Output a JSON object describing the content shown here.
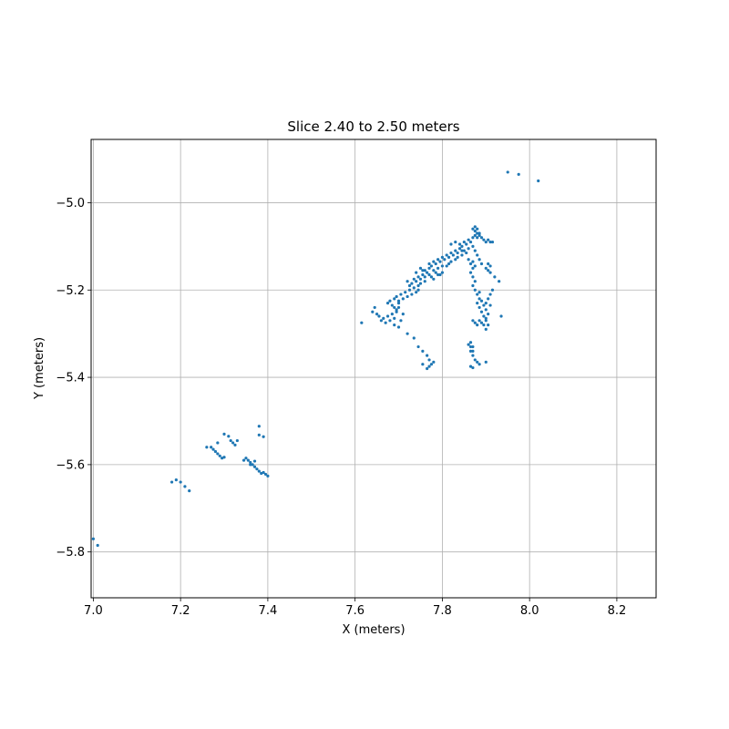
{
  "chart_data": {
    "type": "scatter",
    "title": "Slice 2.40 to 2.50 meters",
    "xlabel": "X (meters)",
    "ylabel": "Y (meters)",
    "xlim": [
      6.995,
      8.29
    ],
    "ylim": [
      -5.905,
      -4.855
    ],
    "grid": true,
    "xticks": [
      7.0,
      7.2,
      7.4,
      7.6,
      7.8,
      8.0,
      8.2
    ],
    "xtick_labels": [
      "7.0",
      "7.2",
      "7.4",
      "7.6",
      "7.8",
      "8.0",
      "8.2"
    ],
    "yticks": [
      -5.0,
      -5.2,
      -5.4,
      -5.6,
      -5.8
    ],
    "ytick_labels": [
      "−5.0",
      "−5.2",
      "−5.4",
      "−5.6",
      "−5.8"
    ],
    "series": [
      {
        "color": "#1f77b4",
        "marker_size": 1.6,
        "points": [
          [
            7.0,
            -5.77
          ],
          [
            7.01,
            -5.785
          ],
          [
            7.18,
            -5.64
          ],
          [
            7.19,
            -5.635
          ],
          [
            7.2,
            -5.64
          ],
          [
            7.21,
            -5.65
          ],
          [
            7.22,
            -5.66
          ],
          [
            7.26,
            -5.56
          ],
          [
            7.27,
            -5.56
          ],
          [
            7.275,
            -5.565
          ],
          [
            7.28,
            -5.57
          ],
          [
            7.285,
            -5.575
          ],
          [
            7.29,
            -5.58
          ],
          [
            7.295,
            -5.585
          ],
          [
            7.3,
            -5.583
          ],
          [
            7.285,
            -5.55
          ],
          [
            7.3,
            -5.53
          ],
          [
            7.31,
            -5.535
          ],
          [
            7.315,
            -5.545
          ],
          [
            7.32,
            -5.55
          ],
          [
            7.325,
            -5.555
          ],
          [
            7.33,
            -5.545
          ],
          [
            7.345,
            -5.59
          ],
          [
            7.35,
            -5.585
          ],
          [
            7.355,
            -5.59
          ],
          [
            7.36,
            -5.595
          ],
          [
            7.365,
            -5.6
          ],
          [
            7.37,
            -5.605
          ],
          [
            7.375,
            -5.61
          ],
          [
            7.38,
            -5.615
          ],
          [
            7.385,
            -5.62
          ],
          [
            7.39,
            -5.618
          ],
          [
            7.395,
            -5.622
          ],
          [
            7.4,
            -5.626
          ],
          [
            7.37,
            -5.592
          ],
          [
            7.36,
            -5.6
          ],
          [
            7.38,
            -5.512
          ],
          [
            7.38,
            -5.532
          ],
          [
            7.39,
            -5.536
          ],
          [
            7.615,
            -5.275
          ],
          [
            7.64,
            -5.25
          ],
          [
            7.645,
            -5.24
          ],
          [
            7.65,
            -5.255
          ],
          [
            7.655,
            -5.26
          ],
          [
            7.66,
            -5.27
          ],
          [
            7.665,
            -5.265
          ],
          [
            7.67,
            -5.275
          ],
          [
            7.675,
            -5.26
          ],
          [
            7.68,
            -5.27
          ],
          [
            7.685,
            -5.255
          ],
          [
            7.69,
            -5.265
          ],
          [
            7.695,
            -5.25
          ],
          [
            7.7,
            -5.24
          ],
          [
            7.69,
            -5.28
          ],
          [
            7.7,
            -5.285
          ],
          [
            7.705,
            -5.27
          ],
          [
            7.71,
            -5.255
          ],
          [
            7.675,
            -5.23
          ],
          [
            7.68,
            -5.225
          ],
          [
            7.685,
            -5.235
          ],
          [
            7.69,
            -5.22
          ],
          [
            7.695,
            -5.215
          ],
          [
            7.7,
            -5.225
          ],
          [
            7.705,
            -5.21
          ],
          [
            7.71,
            -5.22
          ],
          [
            7.715,
            -5.205
          ],
          [
            7.72,
            -5.215
          ],
          [
            7.725,
            -5.2
          ],
          [
            7.73,
            -5.21
          ],
          [
            7.735,
            -5.195
          ],
          [
            7.74,
            -5.205
          ],
          [
            7.745,
            -5.19
          ],
          [
            7.69,
            -5.24
          ],
          [
            7.695,
            -5.245
          ],
          [
            7.7,
            -5.23
          ],
          [
            7.72,
            -5.18
          ],
          [
            7.725,
            -5.19
          ],
          [
            7.73,
            -5.185
          ],
          [
            7.735,
            -5.175
          ],
          [
            7.74,
            -5.18
          ],
          [
            7.745,
            -5.17
          ],
          [
            7.75,
            -5.175
          ],
          [
            7.755,
            -5.165
          ],
          [
            7.76,
            -5.17
          ],
          [
            7.765,
            -5.16
          ],
          [
            7.77,
            -5.165
          ],
          [
            7.75,
            -5.185
          ],
          [
            7.755,
            -5.155
          ],
          [
            7.76,
            -5.18
          ],
          [
            7.745,
            -5.2
          ],
          [
            7.74,
            -5.16
          ],
          [
            7.75,
            -5.15
          ],
          [
            7.76,
            -5.155
          ],
          [
            7.77,
            -5.15
          ],
          [
            7.77,
            -5.14
          ],
          [
            7.775,
            -5.145
          ],
          [
            7.78,
            -5.135
          ],
          [
            7.785,
            -5.14
          ],
          [
            7.79,
            -5.13
          ],
          [
            7.795,
            -5.135
          ],
          [
            7.8,
            -5.125
          ],
          [
            7.805,
            -5.13
          ],
          [
            7.81,
            -5.12
          ],
          [
            7.815,
            -5.125
          ],
          [
            7.82,
            -5.115
          ],
          [
            7.825,
            -5.12
          ],
          [
            7.83,
            -5.11
          ],
          [
            7.835,
            -5.115
          ],
          [
            7.84,
            -5.105
          ],
          [
            7.845,
            -5.11
          ],
          [
            7.78,
            -5.155
          ],
          [
            7.785,
            -5.16
          ],
          [
            7.79,
            -5.15
          ],
          [
            7.795,
            -5.165
          ],
          [
            7.8,
            -5.145
          ],
          [
            7.775,
            -5.17
          ],
          [
            7.78,
            -5.175
          ],
          [
            7.79,
            -5.165
          ],
          [
            7.8,
            -5.16
          ],
          [
            7.81,
            -5.145
          ],
          [
            7.815,
            -5.14
          ],
          [
            7.82,
            -5.135
          ],
          [
            7.83,
            -5.13
          ],
          [
            7.835,
            -5.125
          ],
          [
            7.82,
            -5.095
          ],
          [
            7.83,
            -5.09
          ],
          [
            7.84,
            -5.095
          ],
          [
            7.845,
            -5.1
          ],
          [
            7.85,
            -5.09
          ],
          [
            7.855,
            -5.095
          ],
          [
            7.86,
            -5.085
          ],
          [
            7.865,
            -5.09
          ],
          [
            7.87,
            -5.08
          ],
          [
            7.875,
            -5.075
          ],
          [
            7.88,
            -5.08
          ],
          [
            7.885,
            -5.07
          ],
          [
            7.86,
            -5.105
          ],
          [
            7.85,
            -5.11
          ],
          [
            7.855,
            -5.115
          ],
          [
            7.845,
            -5.12
          ],
          [
            7.87,
            -5.06
          ],
          [
            7.875,
            -5.065
          ],
          [
            7.88,
            -5.07
          ],
          [
            7.885,
            -5.075
          ],
          [
            7.89,
            -5.08
          ],
          [
            7.895,
            -5.085
          ],
          [
            7.9,
            -5.09
          ],
          [
            7.905,
            -5.085
          ],
          [
            7.91,
            -5.09
          ],
          [
            7.915,
            -5.09
          ],
          [
            7.875,
            -5.055
          ],
          [
            7.88,
            -5.06
          ],
          [
            7.86,
            -5.13
          ],
          [
            7.865,
            -5.14
          ],
          [
            7.87,
            -5.135
          ],
          [
            7.875,
            -5.145
          ],
          [
            7.87,
            -5.15
          ],
          [
            7.865,
            -5.16
          ],
          [
            7.87,
            -5.17
          ],
          [
            7.875,
            -5.18
          ],
          [
            7.87,
            -5.19
          ],
          [
            7.875,
            -5.2
          ],
          [
            7.88,
            -5.21
          ],
          [
            7.885,
            -5.22
          ],
          [
            7.88,
            -5.23
          ],
          [
            7.885,
            -5.24
          ],
          [
            7.89,
            -5.25
          ],
          [
            7.895,
            -5.26
          ],
          [
            7.9,
            -5.27
          ],
          [
            7.895,
            -5.235
          ],
          [
            7.9,
            -5.245
          ],
          [
            7.905,
            -5.255
          ],
          [
            7.89,
            -5.225
          ],
          [
            7.885,
            -5.205
          ],
          [
            7.88,
            -5.12
          ],
          [
            7.885,
            -5.13
          ],
          [
            7.89,
            -5.14
          ],
          [
            7.875,
            -5.11
          ],
          [
            7.87,
            -5.1
          ],
          [
            7.9,
            -5.15
          ],
          [
            7.905,
            -5.155
          ],
          [
            7.91,
            -5.16
          ],
          [
            7.915,
            -5.2
          ],
          [
            7.91,
            -5.21
          ],
          [
            7.905,
            -5.22
          ],
          [
            7.9,
            -5.23
          ],
          [
            7.91,
            -5.235
          ],
          [
            7.92,
            -5.17
          ],
          [
            7.93,
            -5.18
          ],
          [
            7.905,
            -5.14
          ],
          [
            7.91,
            -5.145
          ],
          [
            7.87,
            -5.27
          ],
          [
            7.875,
            -5.275
          ],
          [
            7.88,
            -5.28
          ],
          [
            7.885,
            -5.27
          ],
          [
            7.89,
            -5.275
          ],
          [
            7.895,
            -5.28
          ],
          [
            7.9,
            -5.29
          ],
          [
            7.9,
            -5.265
          ],
          [
            7.905,
            -5.28
          ],
          [
            7.935,
            -5.26
          ],
          [
            7.865,
            -5.32
          ],
          [
            7.865,
            -5.33
          ],
          [
            7.87,
            -5.34
          ],
          [
            7.87,
            -5.35
          ],
          [
            7.865,
            -5.34
          ],
          [
            7.875,
            -5.36
          ],
          [
            7.88,
            -5.365
          ],
          [
            7.885,
            -5.37
          ],
          [
            7.87,
            -5.33
          ],
          [
            7.86,
            -5.325
          ],
          [
            7.9,
            -5.365
          ],
          [
            7.865,
            -5.375
          ],
          [
            7.87,
            -5.378
          ],
          [
            7.72,
            -5.3
          ],
          [
            7.735,
            -5.31
          ],
          [
            7.745,
            -5.33
          ],
          [
            7.755,
            -5.34
          ],
          [
            7.765,
            -5.35
          ],
          [
            7.77,
            -5.36
          ],
          [
            7.775,
            -5.37
          ],
          [
            7.78,
            -5.365
          ],
          [
            7.755,
            -5.37
          ],
          [
            7.765,
            -5.38
          ],
          [
            7.77,
            -5.375
          ],
          [
            7.95,
            -4.93
          ],
          [
            7.975,
            -4.935
          ],
          [
            8.02,
            -4.95
          ]
        ]
      }
    ]
  }
}
